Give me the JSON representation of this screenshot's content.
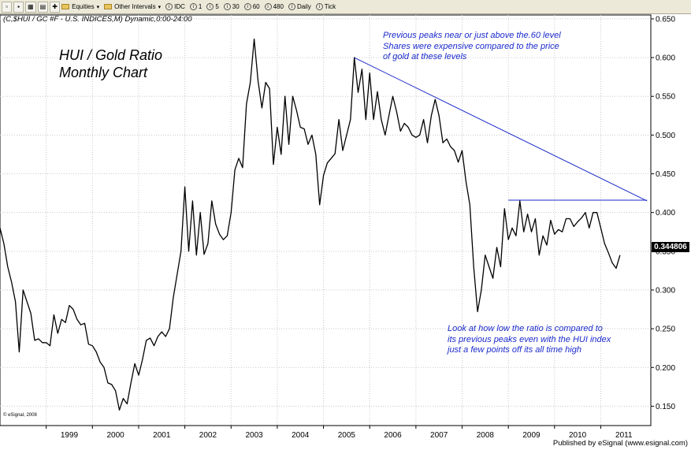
{
  "toolbar": {
    "equities": "Equities",
    "other_intervals": "Other Intervals",
    "idc": "IDC",
    "i1": "1",
    "i5": "5",
    "i30": "30",
    "i60": "60",
    "i480": "480",
    "daily": "Daily",
    "tick": "Tick",
    "circle_glyph": "i"
  },
  "symbol_line": "(C,$HUI / GC #F - U.S. INDICES,M) Dynamic,0:00-24:00",
  "last_value": "0.344806",
  "small_credit": "© eSignal, 2008",
  "footer": "Published by eSignal (www.esignal.com)",
  "chart_data": {
    "type": "line",
    "title": "HUI / Gold Ratio",
    "subtitle": "Monthly Chart",
    "xlabel": "",
    "ylabel": "",
    "x_start": "1998-01",
    "x_end": "2012-02",
    "ylim": [
      0.125,
      0.655
    ],
    "yticks": [
      0.15,
      0.2,
      0.25,
      0.3,
      0.35,
      0.4,
      0.45,
      0.5,
      0.55,
      0.6,
      0.65
    ],
    "ytick_labels": [
      "0.150",
      "0.200",
      "0.250",
      "0.300",
      "0.350",
      "0.400",
      "0.450",
      "0.500",
      "0.550",
      "0.600",
      "0.650"
    ],
    "xtick_labels": [
      "1999",
      "2000",
      "2001",
      "2002",
      "2003",
      "2004",
      "2005",
      "2006",
      "2007",
      "2008",
      "2009",
      "2010",
      "2011"
    ],
    "grid": true,
    "legend": "none",
    "line_color": "#000000",
    "annotation_color": "#1a2acb",
    "series": [
      {
        "values": [
          {
            "x": "1998-01",
            "y": 0.38
          },
          {
            "x": "1998-02",
            "y": 0.36
          },
          {
            "x": "1998-03",
            "y": 0.33
          },
          {
            "x": "1998-04",
            "y": 0.31
          },
          {
            "x": "1998-05",
            "y": 0.285
          },
          {
            "x": "1998-06",
            "y": 0.22
          },
          {
            "x": "1998-07",
            "y": 0.3
          },
          {
            "x": "1998-08",
            "y": 0.285
          },
          {
            "x": "1998-09",
            "y": 0.27
          },
          {
            "x": "1998-10",
            "y": 0.235
          },
          {
            "x": "1998-11",
            "y": 0.237
          },
          {
            "x": "1998-12",
            "y": 0.232
          },
          {
            "x": "1999-01",
            "y": 0.232
          },
          {
            "x": "1999-02",
            "y": 0.228
          },
          {
            "x": "1999-03",
            "y": 0.268
          },
          {
            "x": "1999-04",
            "y": 0.244
          },
          {
            "x": "1999-05",
            "y": 0.262
          },
          {
            "x": "1999-06",
            "y": 0.258
          },
          {
            "x": "1999-07",
            "y": 0.28
          },
          {
            "x": "1999-08",
            "y": 0.275
          },
          {
            "x": "1999-09",
            "y": 0.262
          },
          {
            "x": "1999-10",
            "y": 0.255
          },
          {
            "x": "1999-11",
            "y": 0.257
          },
          {
            "x": "1999-12",
            "y": 0.23
          },
          {
            "x": "2000-01",
            "y": 0.228
          },
          {
            "x": "2000-02",
            "y": 0.22
          },
          {
            "x": "2000-03",
            "y": 0.207
          },
          {
            "x": "2000-04",
            "y": 0.2
          },
          {
            "x": "2000-05",
            "y": 0.18
          },
          {
            "x": "2000-06",
            "y": 0.178
          },
          {
            "x": "2000-07",
            "y": 0.17
          },
          {
            "x": "2000-08",
            "y": 0.145
          },
          {
            "x": "2000-09",
            "y": 0.16
          },
          {
            "x": "2000-10",
            "y": 0.153
          },
          {
            "x": "2000-11",
            "y": 0.18
          },
          {
            "x": "2000-12",
            "y": 0.205
          },
          {
            "x": "2001-01",
            "y": 0.19
          },
          {
            "x": "2001-02",
            "y": 0.21
          },
          {
            "x": "2001-03",
            "y": 0.235
          },
          {
            "x": "2001-04",
            "y": 0.238
          },
          {
            "x": "2001-05",
            "y": 0.228
          },
          {
            "x": "2001-06",
            "y": 0.24
          },
          {
            "x": "2001-07",
            "y": 0.246
          },
          {
            "x": "2001-08",
            "y": 0.24
          },
          {
            "x": "2001-09",
            "y": 0.25
          },
          {
            "x": "2001-10",
            "y": 0.29
          },
          {
            "x": "2001-11",
            "y": 0.32
          },
          {
            "x": "2001-12",
            "y": 0.35
          },
          {
            "x": "2002-01",
            "y": 0.433
          },
          {
            "x": "2002-02",
            "y": 0.35
          },
          {
            "x": "2002-03",
            "y": 0.415
          },
          {
            "x": "2002-04",
            "y": 0.345
          },
          {
            "x": "2002-05",
            "y": 0.4
          },
          {
            "x": "2002-06",
            "y": 0.346
          },
          {
            "x": "2002-07",
            "y": 0.36
          },
          {
            "x": "2002-08",
            "y": 0.415
          },
          {
            "x": "2002-09",
            "y": 0.385
          },
          {
            "x": "2002-10",
            "y": 0.372
          },
          {
            "x": "2002-11",
            "y": 0.365
          },
          {
            "x": "2002-12",
            "y": 0.37
          },
          {
            "x": "2003-01",
            "y": 0.4
          },
          {
            "x": "2003-02",
            "y": 0.455
          },
          {
            "x": "2003-03",
            "y": 0.47
          },
          {
            "x": "2003-04",
            "y": 0.458
          },
          {
            "x": "2003-05",
            "y": 0.54
          },
          {
            "x": "2003-06",
            "y": 0.568
          },
          {
            "x": "2003-07",
            "y": 0.624
          },
          {
            "x": "2003-08",
            "y": 0.57
          },
          {
            "x": "2003-09",
            "y": 0.535
          },
          {
            "x": "2003-10",
            "y": 0.568
          },
          {
            "x": "2003-11",
            "y": 0.56
          },
          {
            "x": "2003-12",
            "y": 0.462
          },
          {
            "x": "2004-01",
            "y": 0.51
          },
          {
            "x": "2004-02",
            "y": 0.475
          },
          {
            "x": "2004-03",
            "y": 0.55
          },
          {
            "x": "2004-04",
            "y": 0.488
          },
          {
            "x": "2004-05",
            "y": 0.55
          },
          {
            "x": "2004-06",
            "y": 0.532
          },
          {
            "x": "2004-07",
            "y": 0.51
          },
          {
            "x": "2004-08",
            "y": 0.508
          },
          {
            "x": "2004-09",
            "y": 0.488
          },
          {
            "x": "2004-10",
            "y": 0.5
          },
          {
            "x": "2004-11",
            "y": 0.475
          },
          {
            "x": "2004-12",
            "y": 0.41
          },
          {
            "x": "2005-01",
            "y": 0.448
          },
          {
            "x": "2005-02",
            "y": 0.464
          },
          {
            "x": "2005-03",
            "y": 0.47
          },
          {
            "x": "2005-04",
            "y": 0.476
          },
          {
            "x": "2005-05",
            "y": 0.52
          },
          {
            "x": "2005-06",
            "y": 0.48
          },
          {
            "x": "2005-07",
            "y": 0.5
          },
          {
            "x": "2005-08",
            "y": 0.52
          },
          {
            "x": "2005-09",
            "y": 0.6
          },
          {
            "x": "2005-10",
            "y": 0.555
          },
          {
            "x": "2005-11",
            "y": 0.585
          },
          {
            "x": "2005-12",
            "y": 0.52
          },
          {
            "x": "2006-01",
            "y": 0.58
          },
          {
            "x": "2006-02",
            "y": 0.52
          },
          {
            "x": "2006-03",
            "y": 0.556
          },
          {
            "x": "2006-04",
            "y": 0.52
          },
          {
            "x": "2006-05",
            "y": 0.5
          },
          {
            "x": "2006-06",
            "y": 0.525
          },
          {
            "x": "2006-07",
            "y": 0.55
          },
          {
            "x": "2006-08",
            "y": 0.53
          },
          {
            "x": "2006-09",
            "y": 0.505
          },
          {
            "x": "2006-10",
            "y": 0.515
          },
          {
            "x": "2006-11",
            "y": 0.51
          },
          {
            "x": "2006-12",
            "y": 0.5
          },
          {
            "x": "2007-01",
            "y": 0.497
          },
          {
            "x": "2007-02",
            "y": 0.5
          },
          {
            "x": "2007-03",
            "y": 0.52
          },
          {
            "x": "2007-04",
            "y": 0.49
          },
          {
            "x": "2007-05",
            "y": 0.525
          },
          {
            "x": "2007-06",
            "y": 0.546
          },
          {
            "x": "2007-07",
            "y": 0.525
          },
          {
            "x": "2007-08",
            "y": 0.49
          },
          {
            "x": "2007-09",
            "y": 0.495
          },
          {
            "x": "2007-10",
            "y": 0.485
          },
          {
            "x": "2007-11",
            "y": 0.48
          },
          {
            "x": "2007-12",
            "y": 0.465
          },
          {
            "x": "2008-01",
            "y": 0.48
          },
          {
            "x": "2008-02",
            "y": 0.44
          },
          {
            "x": "2008-03",
            "y": 0.41
          },
          {
            "x": "2008-04",
            "y": 0.33
          },
          {
            "x": "2008-05",
            "y": 0.272
          },
          {
            "x": "2008-06",
            "y": 0.3
          },
          {
            "x": "2008-07",
            "y": 0.345
          },
          {
            "x": "2008-08",
            "y": 0.33
          },
          {
            "x": "2008-09",
            "y": 0.315
          },
          {
            "x": "2008-10",
            "y": 0.355
          },
          {
            "x": "2008-11",
            "y": 0.33
          },
          {
            "x": "2008-12",
            "y": 0.405
          },
          {
            "x": "2009-01",
            "y": 0.365
          },
          {
            "x": "2009-02",
            "y": 0.38
          },
          {
            "x": "2009-03",
            "y": 0.37
          },
          {
            "x": "2009-04",
            "y": 0.415
          },
          {
            "x": "2009-05",
            "y": 0.375
          },
          {
            "x": "2009-06",
            "y": 0.398
          },
          {
            "x": "2009-07",
            "y": 0.375
          },
          {
            "x": "2009-08",
            "y": 0.392
          },
          {
            "x": "2009-09",
            "y": 0.345
          },
          {
            "x": "2009-10",
            "y": 0.37
          },
          {
            "x": "2009-11",
            "y": 0.358
          },
          {
            "x": "2009-12",
            "y": 0.39
          },
          {
            "x": "2010-01",
            "y": 0.372
          },
          {
            "x": "2010-02",
            "y": 0.378
          },
          {
            "x": "2010-03",
            "y": 0.375
          },
          {
            "x": "2010-04",
            "y": 0.392
          },
          {
            "x": "2010-05",
            "y": 0.392
          },
          {
            "x": "2010-06",
            "y": 0.382
          },
          {
            "x": "2010-07",
            "y": 0.388
          },
          {
            "x": "2010-08",
            "y": 0.393
          },
          {
            "x": "2010-09",
            "y": 0.4
          },
          {
            "x": "2010-10",
            "y": 0.38
          },
          {
            "x": "2010-11",
            "y": 0.4
          },
          {
            "x": "2010-12",
            "y": 0.4
          },
          {
            "x": "2011-01",
            "y": 0.38
          },
          {
            "x": "2011-02",
            "y": 0.36
          },
          {
            "x": "2011-03",
            "y": 0.348
          },
          {
            "x": "2011-04",
            "y": 0.335
          },
          {
            "x": "2011-05",
            "y": 0.328
          },
          {
            "x": "2011-06",
            "y": 0.345
          }
        ]
      }
    ],
    "trendlines": [
      {
        "from": {
          "x": "2005-09",
          "y": 0.6
        },
        "to": {
          "x": "2012-01",
          "y": 0.415
        }
      },
      {
        "from": {
          "x": "2009-01",
          "y": 0.416
        },
        "to": {
          "x": "2012-01",
          "y": 0.416
        }
      }
    ],
    "annotations": [
      "Previous peaks near or just above the.60 level",
      "Shares were expensive compared to the price",
      "of gold at these levels",
      "Look at how low the ratio is compared to",
      "its previous peaks even with the HUI index",
      "just a few points off its all time high"
    ]
  }
}
